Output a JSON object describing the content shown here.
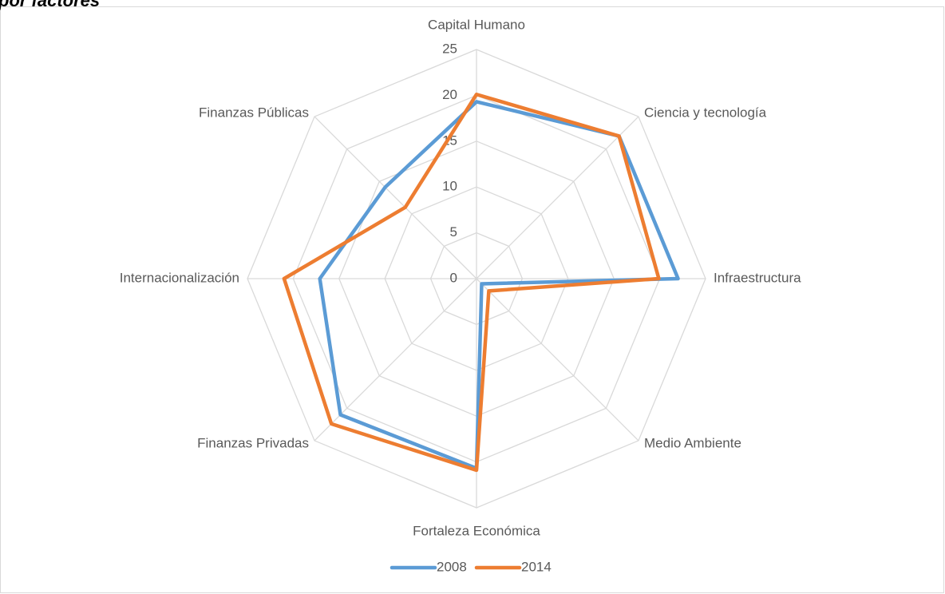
{
  "chart_data": {
    "type": "radar",
    "title": "por factores",
    "categories": [
      "Capital Humano",
      "Ciencia y tecnología",
      "Infraestructura",
      "Medio Ambiente",
      "Fortaleza Económica",
      "Finanzas Privadas",
      "Internacionalización",
      "Finanzas Públicas"
    ],
    "series": [
      {
        "name": "2008",
        "color": "#5b9bd5",
        "values": [
          19.3,
          22.0,
          22.0,
          0.8,
          20.7,
          21.0,
          17.1,
          14.1
        ]
      },
      {
        "name": "2014",
        "color": "#ed7d31",
        "values": [
          20.1,
          22.0,
          19.9,
          1.9,
          20.9,
          22.4,
          21.0,
          11.0
        ]
      }
    ],
    "ylim": [
      0,
      25
    ],
    "yticks": [
      0,
      5,
      10,
      15,
      20,
      25
    ],
    "grid": true,
    "legend": "bottom"
  }
}
